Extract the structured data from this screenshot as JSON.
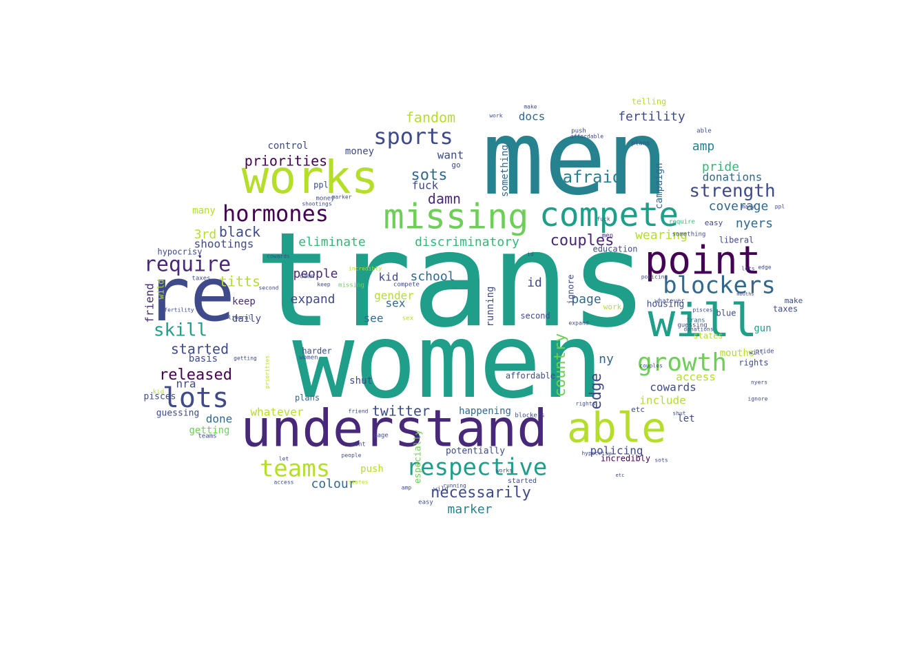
{
  "wordcloud": {
    "shape": "cloud",
    "colormap": [
      "#440154",
      "#482878",
      "#3e4a89",
      "#31688e",
      "#26828e",
      "#1f9e89",
      "#35b779",
      "#6ece58",
      "#b5de2b",
      "#fde725"
    ],
    "words": [
      {
        "text": "trans",
        "color": "#1f9e89"
      },
      {
        "text": "women",
        "color": "#1f9e89"
      },
      {
        "text": "men",
        "color": "#26828e"
      },
      {
        "text": "understand",
        "color": "#482878"
      },
      {
        "text": "re",
        "color": "#3e4a89"
      },
      {
        "text": "works",
        "color": "#b5de2b"
      },
      {
        "text": "missing",
        "color": "#6ece58"
      },
      {
        "text": "compete",
        "color": "#1f9e89"
      },
      {
        "text": "point",
        "color": "#440154"
      },
      {
        "text": "will",
        "color": "#1f9e89"
      },
      {
        "text": "able",
        "color": "#b5de2b"
      },
      {
        "text": "respective",
        "color": "#1f9e89"
      },
      {
        "text": "blockers",
        "color": "#31688e"
      },
      {
        "text": "lots",
        "color": "#3e4a89"
      },
      {
        "text": "growth",
        "color": "#6ece58"
      },
      {
        "text": "sports",
        "color": "#3e4a89"
      },
      {
        "text": "hormones",
        "color": "#440154"
      },
      {
        "text": "require",
        "color": "#482878"
      },
      {
        "text": "strength",
        "color": "#3e4a89"
      },
      {
        "text": "teams",
        "color": "#b5de2b"
      },
      {
        "text": "necessarily",
        "color": "#3e4a89"
      },
      {
        "text": "skill",
        "color": "#1f9e89"
      },
      {
        "text": "afraid",
        "color": "#26828e"
      },
      {
        "text": "priorities",
        "color": "#440154"
      },
      {
        "text": "released",
        "color": "#440154"
      },
      {
        "text": "fandom",
        "color": "#b5de2b"
      },
      {
        "text": "fertility",
        "color": "#3e4a89"
      },
      {
        "text": "damn",
        "color": "#482878"
      },
      {
        "text": "sots",
        "color": "#31688e"
      },
      {
        "text": "couples",
        "color": "#482878"
      },
      {
        "text": "country",
        "color": "#6ece58"
      },
      {
        "text": "edge",
        "color": "#3e4a89"
      },
      {
        "text": "twitter",
        "color": "#3e4a89"
      },
      {
        "text": "marker",
        "color": "#26828e"
      },
      {
        "text": "coverage",
        "color": "#31688e"
      },
      {
        "text": "pride",
        "color": "#35b779"
      },
      {
        "text": "black",
        "color": "#3e4a89"
      },
      {
        "text": "eliminate",
        "color": "#35b779"
      },
      {
        "text": "discriminatory",
        "color": "#35b779"
      },
      {
        "text": "wearing",
        "color": "#b5de2b"
      },
      {
        "text": "nyers",
        "color": "#31688e"
      },
      {
        "text": "shootings",
        "color": "#3e4a89"
      },
      {
        "text": "school",
        "color": "#31688e"
      },
      {
        "text": "people",
        "color": "#482878"
      },
      {
        "text": "titts",
        "color": "#b5de2b"
      },
      {
        "text": "expand",
        "color": "#3e4a89"
      },
      {
        "text": "gender",
        "color": "#b5de2b"
      },
      {
        "text": "kid",
        "color": "#3e4a89"
      },
      {
        "text": "sex",
        "color": "#31688e"
      },
      {
        "text": "see",
        "color": "#31688e"
      },
      {
        "text": "keep",
        "color": "#482878"
      },
      {
        "text": "daily",
        "color": "#3e4a89"
      },
      {
        "text": "started",
        "color": "#3e4a89"
      },
      {
        "text": "basis",
        "color": "#3e4a89"
      },
      {
        "text": "nra",
        "color": "#3e4a89"
      },
      {
        "text": "done",
        "color": "#31688e"
      },
      {
        "text": "getting",
        "color": "#6ece58"
      },
      {
        "text": "whatever",
        "color": "#b5de2b"
      },
      {
        "text": "happening",
        "color": "#31688e"
      },
      {
        "text": "colour",
        "color": "#31688e"
      },
      {
        "text": "push",
        "color": "#b5de2b"
      },
      {
        "text": "docs",
        "color": "#31688e"
      },
      {
        "text": "fuck",
        "color": "#3e4a89"
      },
      {
        "text": "want",
        "color": "#3e4a89"
      },
      {
        "text": "money",
        "color": "#3e4a89"
      },
      {
        "text": "control",
        "color": "#3e4a89"
      },
      {
        "text": "3rd",
        "color": "#b5de2b"
      },
      {
        "text": "many",
        "color": "#b5de2b"
      },
      {
        "text": "amp",
        "color": "#26828e"
      },
      {
        "text": "donations",
        "color": "#31688e"
      },
      {
        "text": "mouths",
        "color": "#b5de2b"
      },
      {
        "text": "cowards",
        "color": "#3e4a89"
      },
      {
        "text": "let",
        "color": "#3e4a89"
      },
      {
        "text": "include",
        "color": "#b5de2b"
      },
      {
        "text": "access",
        "color": "#b5de2b"
      },
      {
        "text": "gun",
        "color": "#1f9e89"
      },
      {
        "text": "id",
        "color": "#3e4a89"
      },
      {
        "text": "page",
        "color": "#31688e"
      },
      {
        "text": "ny",
        "color": "#31688e"
      },
      {
        "text": "running",
        "color": "#3e4a89"
      },
      {
        "text": "friend",
        "color": "#482878"
      },
      {
        "text": "policing",
        "color": "#3e4a89"
      },
      {
        "text": "especially",
        "color": "#6ece58"
      },
      {
        "text": "potentially",
        "color": "#3e4a89"
      },
      {
        "text": "affordable",
        "color": "#3e4a89"
      },
      {
        "text": "incredibly",
        "color": "#440154"
      },
      {
        "text": "shut",
        "color": "#3e4a89"
      },
      {
        "text": "guessing",
        "color": "#3e4a89"
      },
      {
        "text": "pisces",
        "color": "#3e4a89"
      },
      {
        "text": "campaign",
        "color": "#31688e"
      },
      {
        "text": "telling",
        "color": "#b5de2b"
      },
      {
        "text": "something",
        "color": "#31688e"
      },
      {
        "text": "hypocrisy",
        "color": "#3e4a89"
      },
      {
        "text": "plans",
        "color": "#31688e"
      },
      {
        "text": "housing",
        "color": "#3e4a89"
      },
      {
        "text": "taxes",
        "color": "#3e4a89"
      },
      {
        "text": "rights",
        "color": "#3e4a89"
      },
      {
        "text": "education",
        "color": "#3e4a89"
      },
      {
        "text": "liberal",
        "color": "#3e4a89"
      },
      {
        "text": "second",
        "color": "#3e4a89"
      },
      {
        "text": "ignore",
        "color": "#3e4a89"
      },
      {
        "text": "blue",
        "color": "#3e4a89"
      },
      {
        "text": "states",
        "color": "#b5de2b"
      },
      {
        "text": "harder",
        "color": "#3e4a89"
      },
      {
        "text": "wild",
        "color": "#b5de2b"
      },
      {
        "text": "ppl",
        "color": "#3e4a89"
      },
      {
        "text": "etc",
        "color": "#3e4a89"
      },
      {
        "text": "easy",
        "color": "#3e4a89"
      },
      {
        "text": "make",
        "color": "#3e4a89"
      },
      {
        "text": "go",
        "color": "#3e4a89"
      },
      {
        "text": "work",
        "color": "#b5de2b"
      }
    ]
  }
}
